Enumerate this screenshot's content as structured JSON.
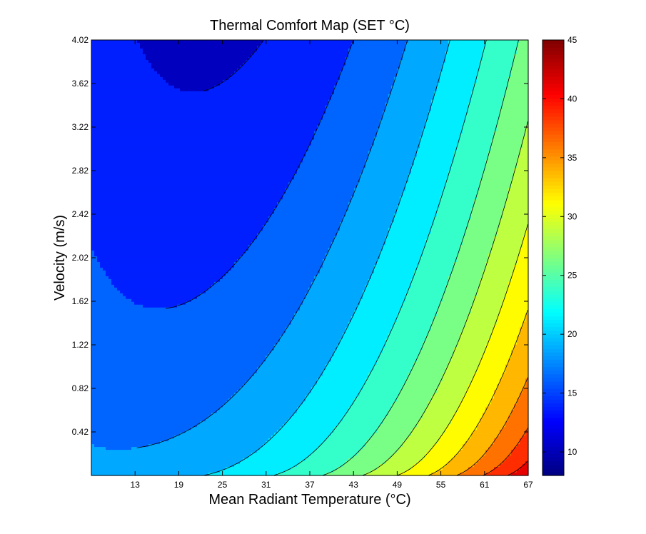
{
  "chart_data": {
    "type": "contourf",
    "title": "Thermal Comfort Map (SET °C)",
    "xlabel": "Mean Radiant Temperature (°C)",
    "ylabel": "Velocity (m/s)",
    "xlim": [
      7,
      67
    ],
    "ylim": [
      0.02,
      4.02
    ],
    "xticks": [
      13,
      19,
      25,
      31,
      37,
      43,
      49,
      55,
      61,
      67
    ],
    "xtick_labels": [
      "13",
      "19",
      "25",
      "31",
      "37",
      "43",
      "49",
      "55",
      "61",
      "67"
    ],
    "yticks": [
      0.42,
      0.82,
      1.22,
      1.62,
      2.02,
      2.42,
      2.82,
      3.22,
      3.62,
      4.02
    ],
    "ytick_labels": [
      "0.42",
      "0.82",
      "1.22",
      "1.62",
      "2.02",
      "2.42",
      "2.82",
      "3.22",
      "3.62",
      "4.02"
    ],
    "colorbar": {
      "range": [
        8,
        45
      ],
      "ticks": [
        10,
        15,
        20,
        25,
        30,
        35,
        40,
        45
      ],
      "tick_labels": [
        "10",
        "15",
        "20",
        "25",
        "30",
        "35",
        "40",
        "45"
      ],
      "colormap": "jet"
    },
    "contour_levels": [
      12.5,
      15,
      17.5,
      20,
      22.5,
      25,
      27.5,
      30,
      32.5,
      35,
      37.5,
      40,
      42.5
    ],
    "sample_values": [
      {
        "x": 7,
        "y": 4.02,
        "set": 13.5
      },
      {
        "x": 7,
        "y": 0.02,
        "set": 19.0
      },
      {
        "x": 67,
        "y": 4.02,
        "set": 25.8
      },
      {
        "x": 67,
        "y": 0.02,
        "set": 43.5
      },
      {
        "x": 37,
        "y": 2.02,
        "set": 22.8
      }
    ],
    "grid": false
  }
}
